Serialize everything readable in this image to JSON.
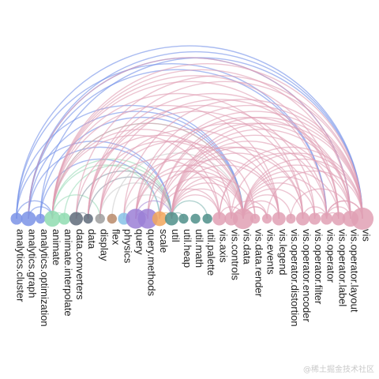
{
  "diagram": {
    "type": "arc-diagram",
    "nodes": [
      {
        "name": "analytics.cluster",
        "group": "analytics",
        "weight": 2
      },
      {
        "name": "analytics.graph",
        "group": "analytics",
        "weight": 4
      },
      {
        "name": "analytics.optimization",
        "group": "analytics",
        "weight": 1
      },
      {
        "name": "animate",
        "group": "animate",
        "weight": 5
      },
      {
        "name": "animate.interpolate",
        "group": "animate",
        "weight": 2
      },
      {
        "name": "data.converters",
        "group": "data",
        "weight": 3
      },
      {
        "name": "data",
        "group": "data",
        "weight": 1
      },
      {
        "name": "display",
        "group": "display",
        "weight": 1
      },
      {
        "name": "flex",
        "group": "flex",
        "weight": 1
      },
      {
        "name": "physics",
        "group": "physics",
        "weight": 2
      },
      {
        "name": "query",
        "group": "query",
        "weight": 9
      },
      {
        "name": "query.methods",
        "group": "query",
        "weight": 9
      },
      {
        "name": "scale",
        "group": "scale",
        "weight": 4
      },
      {
        "name": "util",
        "group": "util",
        "weight": 3
      },
      {
        "name": "util.heap",
        "group": "util",
        "weight": 1
      },
      {
        "name": "util.math",
        "group": "util",
        "weight": 1
      },
      {
        "name": "util.palette",
        "group": "util",
        "weight": 1
      },
      {
        "name": "vis.axis",
        "group": "vis",
        "weight": 3
      },
      {
        "name": "vis.controls",
        "group": "vis",
        "weight": 3
      },
      {
        "name": "vis.data",
        "group": "vis",
        "weight": 10
      },
      {
        "name": "vis.data.render",
        "group": "vis",
        "weight": 1
      },
      {
        "name": "vis.events",
        "group": "vis",
        "weight": 1
      },
      {
        "name": "vis.legend",
        "group": "vis",
        "weight": 3
      },
      {
        "name": "vis.operator.distortion",
        "group": "vis",
        "weight": 1
      },
      {
        "name": "vis.operator.encoder",
        "group": "vis",
        "weight": 3
      },
      {
        "name": "vis.operator.filter",
        "group": "vis",
        "weight": 2
      },
      {
        "name": "vis.operator",
        "group": "vis",
        "weight": 2
      },
      {
        "name": "vis.operator.label",
        "group": "vis",
        "weight": 3
      },
      {
        "name": "vis.operator.layout",
        "group": "vis",
        "weight": 5
      },
      {
        "name": "vis",
        "group": "vis",
        "weight": 12
      }
    ],
    "group_colors": {
      "analytics": "#7b93e6",
      "animate": "#8fdcb0",
      "data": "#5f6b7a",
      "display": "#9e9e9e",
      "flex": "#b88a6a",
      "physics": "#86c2e6",
      "query": "#9b7fd6",
      "scale": "#f2a65a",
      "util": "#4f8f8a",
      "vis": "#e0a0b4"
    },
    "link_colors": {
      "analytics": "#6f8ee8",
      "animate": "#9adbb8",
      "data": "#8c98a6",
      "query": "#a98ed8",
      "scale": "#f0b070",
      "util": "#7fb5b0",
      "vis": "#df9cb2"
    },
    "links": [
      {
        "source": "analytics.cluster",
        "target": "vis"
      },
      {
        "source": "analytics.cluster",
        "target": "vis.data"
      },
      {
        "source": "analytics.cluster",
        "target": "vis.operator"
      },
      {
        "source": "analytics.cluster",
        "target": "util"
      },
      {
        "source": "analytics.cluster",
        "target": "animate"
      },
      {
        "source": "analytics.graph",
        "target": "vis"
      },
      {
        "source": "analytics.graph",
        "target": "vis.operator.layout"
      },
      {
        "source": "analytics.graph",
        "target": "vis.data"
      },
      {
        "source": "analytics.graph",
        "target": "vis.operator"
      },
      {
        "source": "analytics.graph",
        "target": "util"
      },
      {
        "source": "analytics.graph",
        "target": "animate"
      },
      {
        "source": "analytics.optimization",
        "target": "vis"
      },
      {
        "source": "analytics.optimization",
        "target": "vis.data"
      },
      {
        "source": "analytics.optimization",
        "target": "scale"
      },
      {
        "source": "animate",
        "target": "util"
      },
      {
        "source": "animate",
        "target": "animate.interpolate"
      },
      {
        "source": "animate",
        "target": "display"
      },
      {
        "source": "animate",
        "target": "scale"
      },
      {
        "source": "animate.interpolate",
        "target": "util"
      },
      {
        "source": "animate",
        "target": "vis.data"
      },
      {
        "source": "data.converters",
        "target": "data"
      },
      {
        "source": "data.converters",
        "target": "util"
      },
      {
        "source": "data",
        "target": "util"
      },
      {
        "source": "display",
        "target": "util"
      },
      {
        "source": "flex",
        "target": "vis.data"
      },
      {
        "source": "physics",
        "target": "util"
      },
      {
        "source": "query",
        "target": "util"
      },
      {
        "source": "query.methods",
        "target": "query"
      },
      {
        "source": "scale",
        "target": "util"
      },
      {
        "source": "util.heap",
        "target": "util"
      },
      {
        "source": "util.palette",
        "target": "util"
      },
      {
        "source": "vis",
        "target": "vis.data"
      },
      {
        "source": "vis",
        "target": "vis.axis"
      },
      {
        "source": "vis",
        "target": "vis.controls"
      },
      {
        "source": "vis",
        "target": "vis.operator"
      },
      {
        "source": "vis",
        "target": "vis.events"
      },
      {
        "source": "vis",
        "target": "animate"
      },
      {
        "source": "vis",
        "target": "util"
      },
      {
        "source": "vis",
        "target": "scale"
      },
      {
        "source": "vis",
        "target": "data"
      },
      {
        "source": "vis.axis",
        "target": "vis.data"
      },
      {
        "source": "vis.axis",
        "target": "util"
      },
      {
        "source": "vis.axis",
        "target": "scale"
      },
      {
        "source": "vis.axis",
        "target": "display"
      },
      {
        "source": "vis.axis",
        "target": "animate"
      },
      {
        "source": "vis.controls",
        "target": "vis.data"
      },
      {
        "source": "vis.controls",
        "target": "vis.events"
      },
      {
        "source": "vis.controls",
        "target": "util"
      },
      {
        "source": "vis.controls",
        "target": "animate"
      },
      {
        "source": "vis.data",
        "target": "util"
      },
      {
        "source": "vis.data",
        "target": "scale"
      },
      {
        "source": "vis.data",
        "target": "data"
      },
      {
        "source": "vis.data",
        "target": "animate"
      },
      {
        "source": "vis.data",
        "target": "physics"
      },
      {
        "source": "vis.data",
        "target": "vis.data.render"
      },
      {
        "source": "vis.data",
        "target": "vis.events"
      },
      {
        "source": "vis.data.render",
        "target": "util"
      },
      {
        "source": "vis.data.render",
        "target": "display"
      },
      {
        "source": "vis.events",
        "target": "vis.data"
      },
      {
        "source": "vis.legend",
        "target": "vis.data"
      },
      {
        "source": "vis.legend",
        "target": "util"
      },
      {
        "source": "vis.legend",
        "target": "scale"
      },
      {
        "source": "vis.legend",
        "target": "display"
      },
      {
        "source": "vis.legend",
        "target": "animate"
      },
      {
        "source": "vis.operator.distortion",
        "target": "vis.data"
      },
      {
        "source": "vis.operator.distortion",
        "target": "vis.operator.layout"
      },
      {
        "source": "vis.operator.encoder",
        "target": "vis.data"
      },
      {
        "source": "vis.operator.encoder",
        "target": "util"
      },
      {
        "source": "vis.operator.encoder",
        "target": "scale"
      },
      {
        "source": "vis.operator.encoder",
        "target": "vis.operator"
      },
      {
        "source": "vis.operator.encoder",
        "target": "animate"
      },
      {
        "source": "vis.operator.filter",
        "target": "vis.data"
      },
      {
        "source": "vis.operator.filter",
        "target": "util"
      },
      {
        "source": "vis.operator.filter",
        "target": "vis.operator"
      },
      {
        "source": "vis.operator",
        "target": "vis.data"
      },
      {
        "source": "vis.operator",
        "target": "util"
      },
      {
        "source": "vis.operator",
        "target": "animate"
      },
      {
        "source": "vis.operator",
        "target": "vis"
      },
      {
        "source": "vis.operator.label",
        "target": "vis.data"
      },
      {
        "source": "vis.operator.label",
        "target": "util"
      },
      {
        "source": "vis.operator.label",
        "target": "display"
      },
      {
        "source": "vis.operator.label",
        "target": "vis.operator"
      },
      {
        "source": "vis.operator.label",
        "target": "animate"
      },
      {
        "source": "vis.operator.layout",
        "target": "vis.data"
      },
      {
        "source": "vis.operator.layout",
        "target": "util"
      },
      {
        "source": "vis.operator.layout",
        "target": "scale"
      },
      {
        "source": "vis.operator.layout",
        "target": "vis.axis"
      },
      {
        "source": "vis.operator.layout",
        "target": "vis.operator"
      },
      {
        "source": "vis.operator.layout",
        "target": "animate"
      },
      {
        "source": "vis.operator.layout",
        "target": "analytics.graph"
      },
      {
        "source": "vis",
        "target": "query"
      },
      {
        "source": "vis",
        "target": "query.methods"
      },
      {
        "source": "vis.data",
        "target": "query"
      },
      {
        "source": "vis.data",
        "target": "query.methods"
      },
      {
        "source": "vis.operator",
        "target": "query"
      },
      {
        "source": "vis.operator.layout",
        "target": "query.methods"
      },
      {
        "source": "vis.legend",
        "target": "query"
      },
      {
        "source": "vis.controls",
        "target": "query"
      },
      {
        "source": "vis",
        "target": "physics"
      },
      {
        "source": "vis",
        "target": "data.converters"
      },
      {
        "source": "vis.data",
        "target": "data.converters"
      },
      {
        "source": "vis.operator.encoder",
        "target": "data"
      },
      {
        "source": "vis.operator.label",
        "target": "data"
      },
      {
        "source": "vis.operator.filter",
        "target": "data"
      }
    ]
  },
  "watermark": "@稀土掘金技术社区"
}
